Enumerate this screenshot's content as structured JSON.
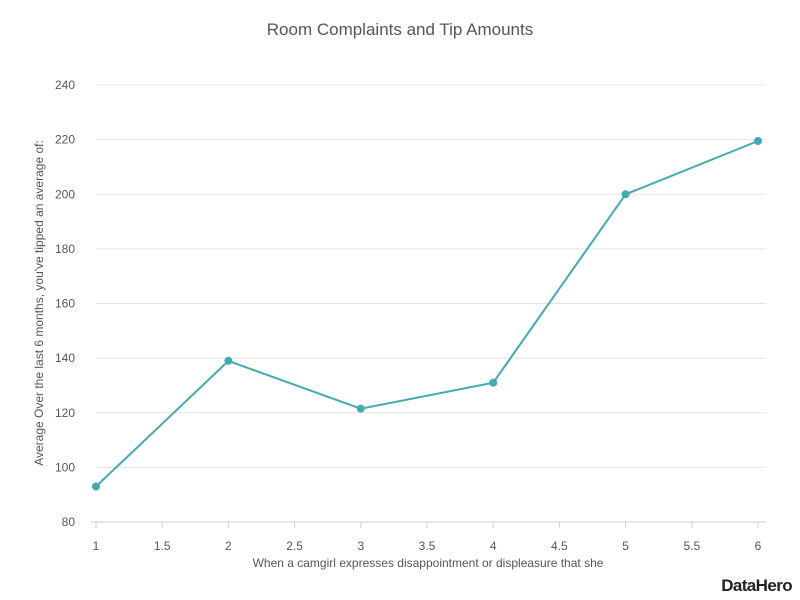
{
  "branding": {
    "logo_text": "DataHero"
  },
  "chart_data": {
    "type": "line",
    "title": "Room Complaints and Tip Amounts",
    "xlabel": "When a camgirl expresses disappointment or displeasure that she",
    "ylabel": "Average Over the last 6 months, you've tipped an average of:",
    "xlim": [
      1,
      6
    ],
    "ylim": [
      80,
      240
    ],
    "xticks": [
      "1",
      "1.5",
      "2",
      "2.5",
      "3",
      "3.5",
      "4",
      "4.5",
      "5",
      "5.5",
      "6"
    ],
    "yticks": [
      "80",
      "100",
      "120",
      "140",
      "160",
      "180",
      "200",
      "220",
      "240"
    ],
    "grid": true,
    "series": [
      {
        "x": [
          1,
          2,
          3,
          4,
          5,
          6
        ],
        "values": [
          93,
          139,
          121.5,
          131,
          200,
          219.5
        ],
        "color": "#45a9b0"
      }
    ]
  }
}
